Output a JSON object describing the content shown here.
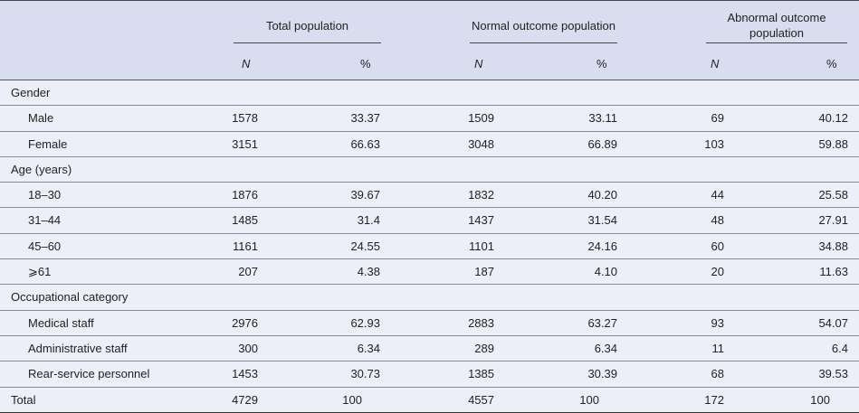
{
  "header": {
    "groups": [
      "Total population",
      "Normal outcome population",
      "Abnormal outcome population"
    ],
    "sub": [
      "N",
      "%"
    ]
  },
  "rows": [
    {
      "label": "Gender",
      "indent": false,
      "values": []
    },
    {
      "label": "Male",
      "indent": true,
      "values": [
        "1578",
        "33.37",
        "1509",
        "33.11",
        "69",
        "40.12"
      ]
    },
    {
      "label": "Female",
      "indent": true,
      "values": [
        "3151",
        "66.63",
        "3048",
        "66.89",
        "103",
        "59.88"
      ]
    },
    {
      "label": "Age (years)",
      "indent": false,
      "values": []
    },
    {
      "label": "18–30",
      "indent": true,
      "values": [
        "1876",
        "39.67",
        "1832",
        "40.20",
        "44",
        "25.58"
      ]
    },
    {
      "label": "31–44",
      "indent": true,
      "values": [
        "1485",
        "31.4",
        "1437",
        "31.54",
        "48",
        "27.91"
      ]
    },
    {
      "label": "45–60",
      "indent": true,
      "values": [
        "1161",
        "24.55",
        "1101",
        "24.16",
        "60",
        "34.88"
      ]
    },
    {
      "label": "⩾61",
      "indent": true,
      "values": [
        "207",
        "4.38",
        "187",
        "4.10",
        "20",
        "11.63"
      ]
    },
    {
      "label": "Occupational category",
      "indent": false,
      "values": []
    },
    {
      "label": "Medical staff",
      "indent": true,
      "values": [
        "2976",
        "62.93",
        "2883",
        "63.27",
        "93",
        "54.07"
      ]
    },
    {
      "label": "Administrative staff",
      "indent": true,
      "values": [
        "300",
        "6.34",
        "289",
        "6.34",
        "11",
        "6.4"
      ]
    },
    {
      "label": "Rear-service personnel",
      "indent": true,
      "values": [
        "1453",
        "30.73",
        "1385",
        "30.39",
        "68",
        "39.53"
      ]
    },
    {
      "label": "Total",
      "indent": false,
      "values": [
        "4729",
        "100",
        "4557",
        "100",
        "172",
        "100"
      ]
    }
  ],
  "colors": {
    "header_bg": "#d8deef",
    "body_bg": "#eceff8"
  }
}
